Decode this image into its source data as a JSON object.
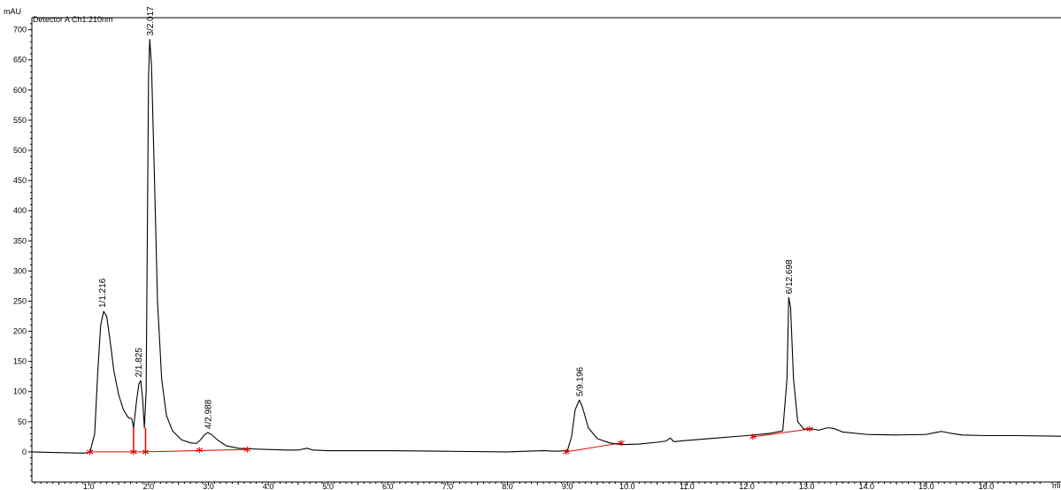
{
  "header": {
    "y_unit": "mAU",
    "detector": "Detector A Ch1:210nm",
    "x_unit": "mi"
  },
  "colors": {
    "trace": "#000000",
    "baseline": "#e00000",
    "axis": "#000000"
  },
  "chart_data": {
    "type": "line",
    "title": "",
    "xlabel": "mi",
    "ylabel": "mAU",
    "xlim": [
      0.05,
      17.25
    ],
    "ylim": [
      -50,
      720
    ],
    "x_ticks": [
      "1.0",
      "2.0",
      "3.0",
      "4.0",
      "5.0",
      "6.0",
      "7.0",
      "8.0",
      "9.0",
      "10.0",
      "11.0",
      "12.0",
      "13.0",
      "14.0",
      "15.0",
      "16.0"
    ],
    "y_ticks": [
      "0",
      "50",
      "100",
      "150",
      "200",
      "250",
      "300",
      "350",
      "400",
      "450",
      "500",
      "550",
      "600",
      "650",
      "700"
    ],
    "series": [
      {
        "points": [
          [
            0.05,
            0
          ],
          [
            0.4,
            -1
          ],
          [
            0.9,
            -2
          ],
          [
            1.02,
            -1
          ],
          [
            1.1,
            30
          ],
          [
            1.15,
            130
          ],
          [
            1.2,
            210
          ],
          [
            1.25,
            233
          ],
          [
            1.3,
            225
          ],
          [
            1.35,
            190
          ],
          [
            1.42,
            135
          ],
          [
            1.5,
            95
          ],
          [
            1.58,
            70
          ],
          [
            1.66,
            57
          ],
          [
            1.72,
            55
          ],
          [
            1.75,
            40
          ],
          [
            1.8,
            85
          ],
          [
            1.84,
            113
          ],
          [
            1.87,
            118
          ],
          [
            1.9,
            90
          ],
          [
            1.93,
            40
          ],
          [
            1.96,
            100
          ],
          [
            2.0,
            620
          ],
          [
            2.02,
            684
          ],
          [
            2.05,
            640
          ],
          [
            2.1,
            450
          ],
          [
            2.15,
            250
          ],
          [
            2.22,
            120
          ],
          [
            2.3,
            60
          ],
          [
            2.4,
            35
          ],
          [
            2.55,
            20
          ],
          [
            2.7,
            15
          ],
          [
            2.8,
            14
          ],
          [
            2.87,
            20
          ],
          [
            2.93,
            28
          ],
          [
            2.99,
            32
          ],
          [
            3.05,
            29
          ],
          [
            3.15,
            20
          ],
          [
            3.3,
            10
          ],
          [
            3.5,
            6
          ],
          [
            3.7,
            5
          ],
          [
            4.0,
            4
          ],
          [
            4.3,
            3
          ],
          [
            4.5,
            3
          ],
          [
            4.65,
            6
          ],
          [
            4.75,
            3
          ],
          [
            5.0,
            2
          ],
          [
            6.0,
            2
          ],
          [
            7.0,
            1
          ],
          [
            8.0,
            0
          ],
          [
            8.3,
            1
          ],
          [
            8.6,
            2
          ],
          [
            8.8,
            1
          ],
          [
            9.0,
            2
          ],
          [
            9.07,
            25
          ],
          [
            9.13,
            70
          ],
          [
            9.2,
            86
          ],
          [
            9.25,
            75
          ],
          [
            9.35,
            40
          ],
          [
            9.5,
            22
          ],
          [
            9.7,
            15
          ],
          [
            9.9,
            12
          ],
          [
            10.2,
            13
          ],
          [
            10.5,
            16
          ],
          [
            10.65,
            18
          ],
          [
            10.72,
            23
          ],
          [
            10.78,
            17
          ],
          [
            11.0,
            19
          ],
          [
            11.5,
            23
          ],
          [
            12.0,
            27
          ],
          [
            12.4,
            31
          ],
          [
            12.6,
            35
          ],
          [
            12.67,
            120
          ],
          [
            12.7,
            256
          ],
          [
            12.73,
            240
          ],
          [
            12.78,
            120
          ],
          [
            12.85,
            50
          ],
          [
            12.95,
            38
          ],
          [
            13.1,
            38
          ],
          [
            13.2,
            36
          ],
          [
            13.35,
            40
          ],
          [
            13.45,
            39
          ],
          [
            13.6,
            33
          ],
          [
            14.0,
            29
          ],
          [
            14.5,
            28
          ],
          [
            15.0,
            29
          ],
          [
            15.15,
            32
          ],
          [
            15.25,
            34
          ],
          [
            15.4,
            31
          ],
          [
            15.6,
            28
          ],
          [
            16.0,
            27
          ],
          [
            16.5,
            27
          ],
          [
            17.25,
            26
          ]
        ]
      }
    ],
    "baselines": [
      {
        "from": [
          1.02,
          0
        ],
        "to": [
          1.75,
          0
        ]
      },
      {
        "from": [
          1.75,
          0
        ],
        "to": [
          1.95,
          0
        ]
      },
      {
        "from": [
          1.95,
          0
        ],
        "to": [
          3.65,
          4
        ]
      },
      {
        "from": [
          8.98,
          0
        ],
        "to": [
          9.9,
          15
        ]
      },
      {
        "from": [
          12.1,
          25
        ],
        "to": [
          13.05,
          38
        ]
      }
    ],
    "baseline_drops": [
      {
        "x": 1.75,
        "from": 0,
        "to": 40
      },
      {
        "x": 1.95,
        "from": 0,
        "to": 40
      }
    ],
    "markers": [
      [
        1.02,
        0
      ],
      [
        1.75,
        0
      ],
      [
        1.95,
        0
      ],
      [
        2.85,
        3
      ],
      [
        3.65,
        4
      ],
      [
        8.98,
        0
      ],
      [
        9.9,
        15
      ],
      [
        12.1,
        25
      ],
      [
        13.05,
        38
      ]
    ],
    "peaks": [
      {
        "label": "1/1.216",
        "x": 1.216,
        "y": 233
      },
      {
        "label": "2/1.825",
        "x": 1.825,
        "y": 118
      },
      {
        "label": "3/2.017",
        "x": 2.017,
        "y": 684
      },
      {
        "label": "4/2.988",
        "x": 2.988,
        "y": 32
      },
      {
        "label": "5/9.196",
        "x": 9.196,
        "y": 86
      },
      {
        "label": "6/12.698",
        "x": 12.698,
        "y": 256
      }
    ]
  }
}
